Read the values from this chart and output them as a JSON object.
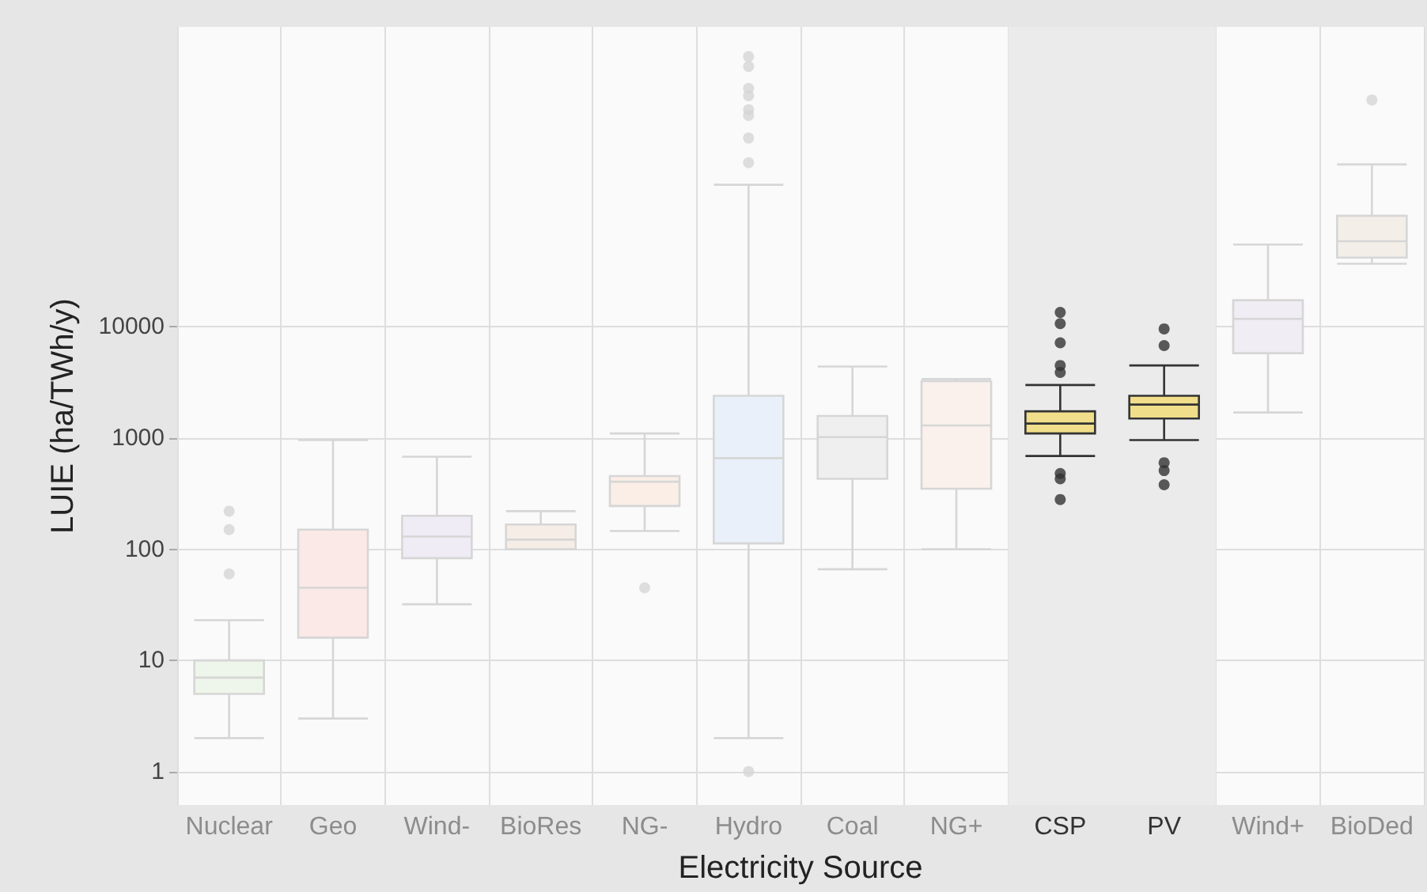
{
  "chart_data": {
    "type": "box",
    "xlabel": "Electricity Source",
    "ylabel": "LUIE (ha/TWh/y)",
    "categories": [
      "Nuclear",
      "Geo",
      "Wind-",
      "BioRes",
      "NG-",
      "Hydro",
      "Coal",
      "NG+",
      "CSP",
      "PV",
      "Wind+",
      "BioDed"
    ],
    "colors": [
      "#eef5ea",
      "#fbe9e7",
      "#efecf5",
      "#f6ede6",
      "#fbeee6",
      "#e9f0f9",
      "#efefef",
      "#fbf1ec",
      "#f0de8a",
      "#f0de8a",
      "#f0edf4",
      "#f4eee8"
    ],
    "boxes": [
      {
        "low": 2,
        "q1": 5,
        "median": 7,
        "q3": 10,
        "high": 23,
        "outliers": [
          220,
          150,
          60
        ]
      },
      {
        "low": 3,
        "q1": 16,
        "median": 45,
        "q3": 150,
        "high": 960
      },
      {
        "low": 32,
        "q1": 83,
        "median": 130,
        "q3": 200,
        "high": 680
      },
      {
        "low": 100,
        "q1": 100,
        "median": 122,
        "q3": 167,
        "high": 220
      },
      {
        "low": 146,
        "q1": 245,
        "median": 405,
        "q3": 455,
        "high": 1100,
        "outliers": [
          45
        ]
      },
      {
        "low": 2,
        "q1": 113,
        "median": 660,
        "q3": 2400,
        "high": 190000,
        "outliers": [
          2700000,
          2200000,
          1400000,
          1200000,
          900000,
          800000,
          500000,
          300000,
          1
        ]
      },
      {
        "low": 66,
        "q1": 430,
        "median": 1020,
        "q3": 1580,
        "high": 4400
      },
      {
        "low": 100,
        "q1": 350,
        "median": 1300,
        "q3": 3250,
        "high": 3400
      },
      {
        "low": 690,
        "q1": 1100,
        "median": 1350,
        "q3": 1740,
        "high": 3000,
        "outliers": [
          13500,
          10700,
          7200,
          4500,
          3900,
          480,
          430,
          280
        ]
      },
      {
        "low": 960,
        "q1": 1500,
        "median": 2000,
        "q3": 2400,
        "high": 4500,
        "outliers": [
          9600,
          6800,
          600,
          510,
          380
        ]
      },
      {
        "low": 1700,
        "q1": 5800,
        "median": 11800,
        "q3": 17400,
        "high": 55000
      },
      {
        "low": 37000,
        "q1": 42000,
        "median": 59000,
        "q3": 100000,
        "high": 290000,
        "outliers": [
          1100000
        ]
      }
    ],
    "bands": [
      {
        "axis": "x",
        "from": "CSP",
        "to": "PV",
        "color": "#ebebeb"
      }
    ],
    "log": "y",
    "ylim": [
      0.5,
      5000000
    ],
    "yticks": [
      1,
      10,
      100,
      1000,
      10000
    ],
    "grid": true
  }
}
